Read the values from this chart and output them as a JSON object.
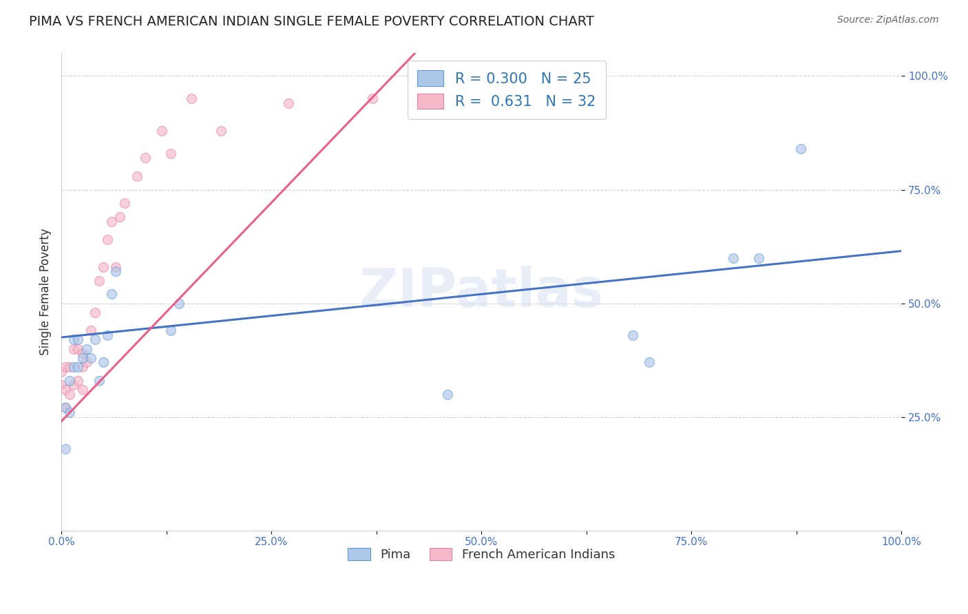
{
  "title": "PIMA VS FRENCH AMERICAN INDIAN SINGLE FEMALE POVERTY CORRELATION CHART",
  "source": "Source: ZipAtlas.com",
  "ylabel": "Single Female Poverty",
  "xlabel": "",
  "xlim": [
    0,
    1
  ],
  "ylim": [
    0,
    1.05
  ],
  "x_tick_labels": [
    "0.0%",
    "",
    "25.0%",
    "",
    "50.0%",
    "",
    "75.0%",
    "",
    "100.0%"
  ],
  "x_tick_vals": [
    0,
    0.125,
    0.25,
    0.375,
    0.5,
    0.625,
    0.75,
    0.875,
    1.0
  ],
  "y_tick_labels": [
    "25.0%",
    "50.0%",
    "75.0%",
    "100.0%"
  ],
  "y_tick_vals": [
    0.25,
    0.5,
    0.75,
    1.0
  ],
  "background_color": "#ffffff",
  "grid_color": "#cccccc",
  "pima_color": "#aec6e8",
  "pima_edge_color": "#5b9bd5",
  "french_color": "#f4b8c8",
  "french_edge_color": "#e87fa0",
  "pima_R": 0.3,
  "pima_N": 25,
  "french_R": 0.631,
  "french_N": 32,
  "pima_line_color": "#4472c4",
  "french_line_color": "#e8608a",
  "legend_R_color": "#2e75b6",
  "pima_x": [
    0.005,
    0.005,
    0.01,
    0.01,
    0.015,
    0.015,
    0.02,
    0.02,
    0.025,
    0.03,
    0.035,
    0.04,
    0.045,
    0.05,
    0.055,
    0.06,
    0.065,
    0.13,
    0.14,
    0.46,
    0.68,
    0.7,
    0.8,
    0.83,
    0.88
  ],
  "pima_y": [
    0.18,
    0.27,
    0.26,
    0.33,
    0.36,
    0.42,
    0.36,
    0.42,
    0.38,
    0.4,
    0.38,
    0.42,
    0.33,
    0.37,
    0.43,
    0.52,
    0.57,
    0.44,
    0.5,
    0.3,
    0.43,
    0.37,
    0.6,
    0.6,
    0.84
  ],
  "french_x": [
    0.0,
    0.0,
    0.005,
    0.005,
    0.005,
    0.01,
    0.01,
    0.015,
    0.015,
    0.02,
    0.02,
    0.025,
    0.025,
    0.025,
    0.03,
    0.035,
    0.04,
    0.045,
    0.05,
    0.055,
    0.06,
    0.065,
    0.07,
    0.075,
    0.09,
    0.1,
    0.12,
    0.13,
    0.155,
    0.19,
    0.27,
    0.37
  ],
  "french_y": [
    0.32,
    0.35,
    0.27,
    0.31,
    0.36,
    0.3,
    0.36,
    0.32,
    0.4,
    0.33,
    0.4,
    0.31,
    0.36,
    0.39,
    0.37,
    0.44,
    0.48,
    0.55,
    0.58,
    0.64,
    0.68,
    0.58,
    0.69,
    0.72,
    0.78,
    0.82,
    0.88,
    0.83,
    0.95,
    0.88,
    0.94,
    0.95
  ],
  "marker_size": 100,
  "alpha": 0.65,
  "pima_line_x0": 0.0,
  "pima_line_x1": 1.0,
  "pima_line_y0": 0.425,
  "pima_line_y1": 0.615,
  "french_line_x0": 0.0,
  "french_line_x1": 0.4,
  "french_line_y0": 0.24,
  "french_line_y1": 1.01
}
